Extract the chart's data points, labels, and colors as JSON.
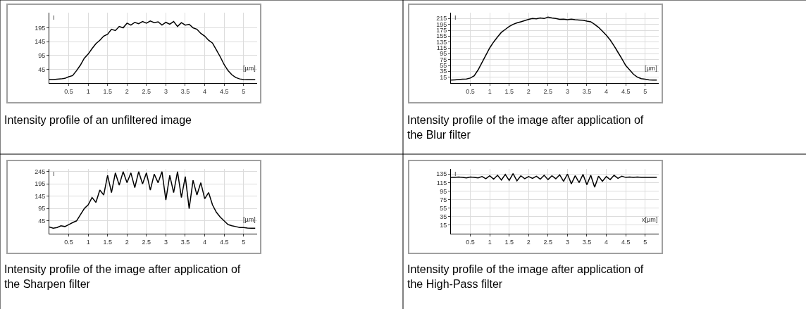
{
  "chart_data": [
    {
      "type": "line",
      "xlabel": "[µm]",
      "ylabel": "I",
      "xlim": [
        0,
        5.35
      ],
      "xticks": [
        0.5,
        1,
        1.5,
        2,
        2.5,
        3,
        3.5,
        4,
        4.5,
        5
      ],
      "ylim": [
        -5,
        250
      ],
      "yticks": [
        45,
        95,
        145,
        195
      ],
      "grid": true,
      "annotations": [
        "Intensity profile of an unfiltered image"
      ],
      "series": [
        {
          "color": "#000000",
          "x": [
            0,
            0.1,
            0.2,
            0.3,
            0.4,
            0.5,
            0.6,
            0.7,
            0.8,
            0.9,
            1.0,
            1.1,
            1.2,
            1.3,
            1.4,
            1.5,
            1.6,
            1.7,
            1.8,
            1.9,
            2.0,
            2.1,
            2.2,
            2.3,
            2.4,
            2.5,
            2.6,
            2.7,
            2.8,
            2.9,
            3.0,
            3.1,
            3.2,
            3.3,
            3.4,
            3.5,
            3.6,
            3.7,
            3.8,
            3.9,
            4.0,
            4.1,
            4.2,
            4.3,
            4.4,
            4.5,
            4.6,
            4.7,
            4.8,
            4.9,
            5.0,
            5.1,
            5.2,
            5.3
          ],
          "values": [
            8,
            8,
            9,
            10,
            12,
            18,
            22,
            40,
            60,
            85,
            100,
            120,
            138,
            150,
            165,
            172,
            190,
            185,
            200,
            195,
            212,
            205,
            215,
            210,
            218,
            212,
            220,
            214,
            217,
            205,
            215,
            208,
            218,
            200,
            214,
            205,
            208,
            195,
            190,
            175,
            165,
            150,
            140,
            115,
            90,
            62,
            40,
            25,
            15,
            10,
            8,
            7,
            7,
            7
          ]
        }
      ]
    },
    {
      "type": "line",
      "xlabel": "[µm]",
      "ylabel": "I",
      "xlim": [
        0,
        5.35
      ],
      "xticks": [
        0.5,
        1,
        1.5,
        2,
        2.5,
        3,
        3.5,
        4,
        4.5,
        5
      ],
      "ylim": [
        -5,
        235
      ],
      "yticks": [
        15,
        35,
        55,
        75,
        95,
        115,
        135,
        155,
        175,
        195,
        215
      ],
      "grid": true,
      "annotations": [
        "Intensity profile of the image after application of the Blur filter"
      ],
      "series": [
        {
          "color": "#000000",
          "x": [
            0,
            0.1,
            0.2,
            0.3,
            0.4,
            0.5,
            0.6,
            0.7,
            0.8,
            0.9,
            1.0,
            1.1,
            1.2,
            1.3,
            1.4,
            1.5,
            1.6,
            1.7,
            1.8,
            1.9,
            2.0,
            2.1,
            2.2,
            2.3,
            2.4,
            2.5,
            2.6,
            2.7,
            2.8,
            2.9,
            3.0,
            3.1,
            3.2,
            3.3,
            3.4,
            3.5,
            3.6,
            3.7,
            3.8,
            3.9,
            4.0,
            4.1,
            4.2,
            4.3,
            4.4,
            4.5,
            4.6,
            4.7,
            4.8,
            4.9,
            5.0,
            5.1,
            5.2,
            5.3
          ],
          "values": [
            5,
            6,
            7,
            8,
            9,
            12,
            20,
            40,
            65,
            90,
            115,
            135,
            152,
            168,
            178,
            188,
            195,
            200,
            204,
            208,
            212,
            215,
            214,
            217,
            215,
            220,
            217,
            215,
            212,
            213,
            211,
            213,
            211,
            210,
            209,
            206,
            204,
            195,
            185,
            172,
            158,
            142,
            122,
            100,
            78,
            55,
            40,
            25,
            15,
            10,
            8,
            6,
            5,
            5
          ]
        }
      ]
    },
    {
      "type": "line",
      "xlabel": "[µm]",
      "ylabel": "I",
      "xlim": [
        0,
        5.35
      ],
      "xticks": [
        0.5,
        1,
        1.5,
        2,
        2.5,
        3,
        3.5,
        4,
        4.5,
        5
      ],
      "ylim": [
        -7,
        256
      ],
      "yticks": [
        45,
        95,
        145,
        195,
        245
      ],
      "grid": true,
      "annotations": [
        "Intensity profile of the image after application of the Sharpen filter"
      ],
      "series": [
        {
          "color": "#000000",
          "x": [
            0,
            0.1,
            0.2,
            0.3,
            0.4,
            0.5,
            0.6,
            0.7,
            0.8,
            0.9,
            1.0,
            1.1,
            1.2,
            1.3,
            1.4,
            1.5,
            1.6,
            1.7,
            1.8,
            1.9,
            2.0,
            2.1,
            2.2,
            2.3,
            2.4,
            2.5,
            2.6,
            2.7,
            2.8,
            2.9,
            3.0,
            3.1,
            3.2,
            3.3,
            3.4,
            3.5,
            3.6,
            3.7,
            3.8,
            3.9,
            4.0,
            4.1,
            4.2,
            4.3,
            4.4,
            4.5,
            4.6,
            4.7,
            4.8,
            4.9,
            5.0,
            5.1,
            5.2,
            5.3
          ],
          "values": [
            20,
            15,
            18,
            25,
            22,
            30,
            38,
            45,
            70,
            95,
            110,
            140,
            120,
            170,
            150,
            230,
            160,
            240,
            190,
            245,
            200,
            240,
            180,
            245,
            195,
            240,
            170,
            235,
            200,
            245,
            130,
            230,
            160,
            245,
            140,
            225,
            95,
            210,
            150,
            200,
            135,
            160,
            110,
            80,
            60,
            45,
            30,
            25,
            22,
            18,
            18,
            16,
            15,
            15
          ]
        }
      ]
    },
    {
      "type": "line",
      "xlabel": "x[µm]",
      "ylabel": "I",
      "xlim": [
        0,
        5.35
      ],
      "xticks": [
        0.5,
        1,
        1.5,
        2,
        2.5,
        3,
        3.5,
        4,
        4.5,
        5
      ],
      "ylim": [
        -5,
        147
      ],
      "yticks": [
        15,
        35,
        55,
        75,
        95,
        115,
        135
      ],
      "grid": true,
      "annotations": [
        "Intensity profile of the image after application of the High-Pass filter"
      ],
      "series": [
        {
          "color": "#000000",
          "x": [
            0,
            0.1,
            0.2,
            0.3,
            0.4,
            0.5,
            0.6,
            0.7,
            0.8,
            0.9,
            1.0,
            1.1,
            1.2,
            1.3,
            1.4,
            1.5,
            1.6,
            1.7,
            1.8,
            1.9,
            2.0,
            2.1,
            2.2,
            2.3,
            2.4,
            2.5,
            2.6,
            2.7,
            2.8,
            2.9,
            3.0,
            3.1,
            3.2,
            3.3,
            3.4,
            3.5,
            3.6,
            3.7,
            3.8,
            3.9,
            4.0,
            4.1,
            4.2,
            4.3,
            4.4,
            4.5,
            4.6,
            4.7,
            4.8,
            4.9,
            5.0,
            5.1,
            5.2,
            5.3
          ],
          "values": [
            127,
            127,
            128,
            127,
            126,
            128,
            127,
            126,
            129,
            124,
            131,
            123,
            132,
            121,
            134,
            120,
            136,
            119,
            131,
            124,
            129,
            125,
            130,
            123,
            132,
            122,
            131,
            124,
            133,
            118,
            135,
            112,
            131,
            115,
            134,
            110,
            132,
            104,
            130,
            118,
            129,
            122,
            132,
            125,
            130,
            127,
            128,
            127,
            128,
            127,
            127,
            127,
            127,
            127
          ]
        }
      ]
    }
  ]
}
